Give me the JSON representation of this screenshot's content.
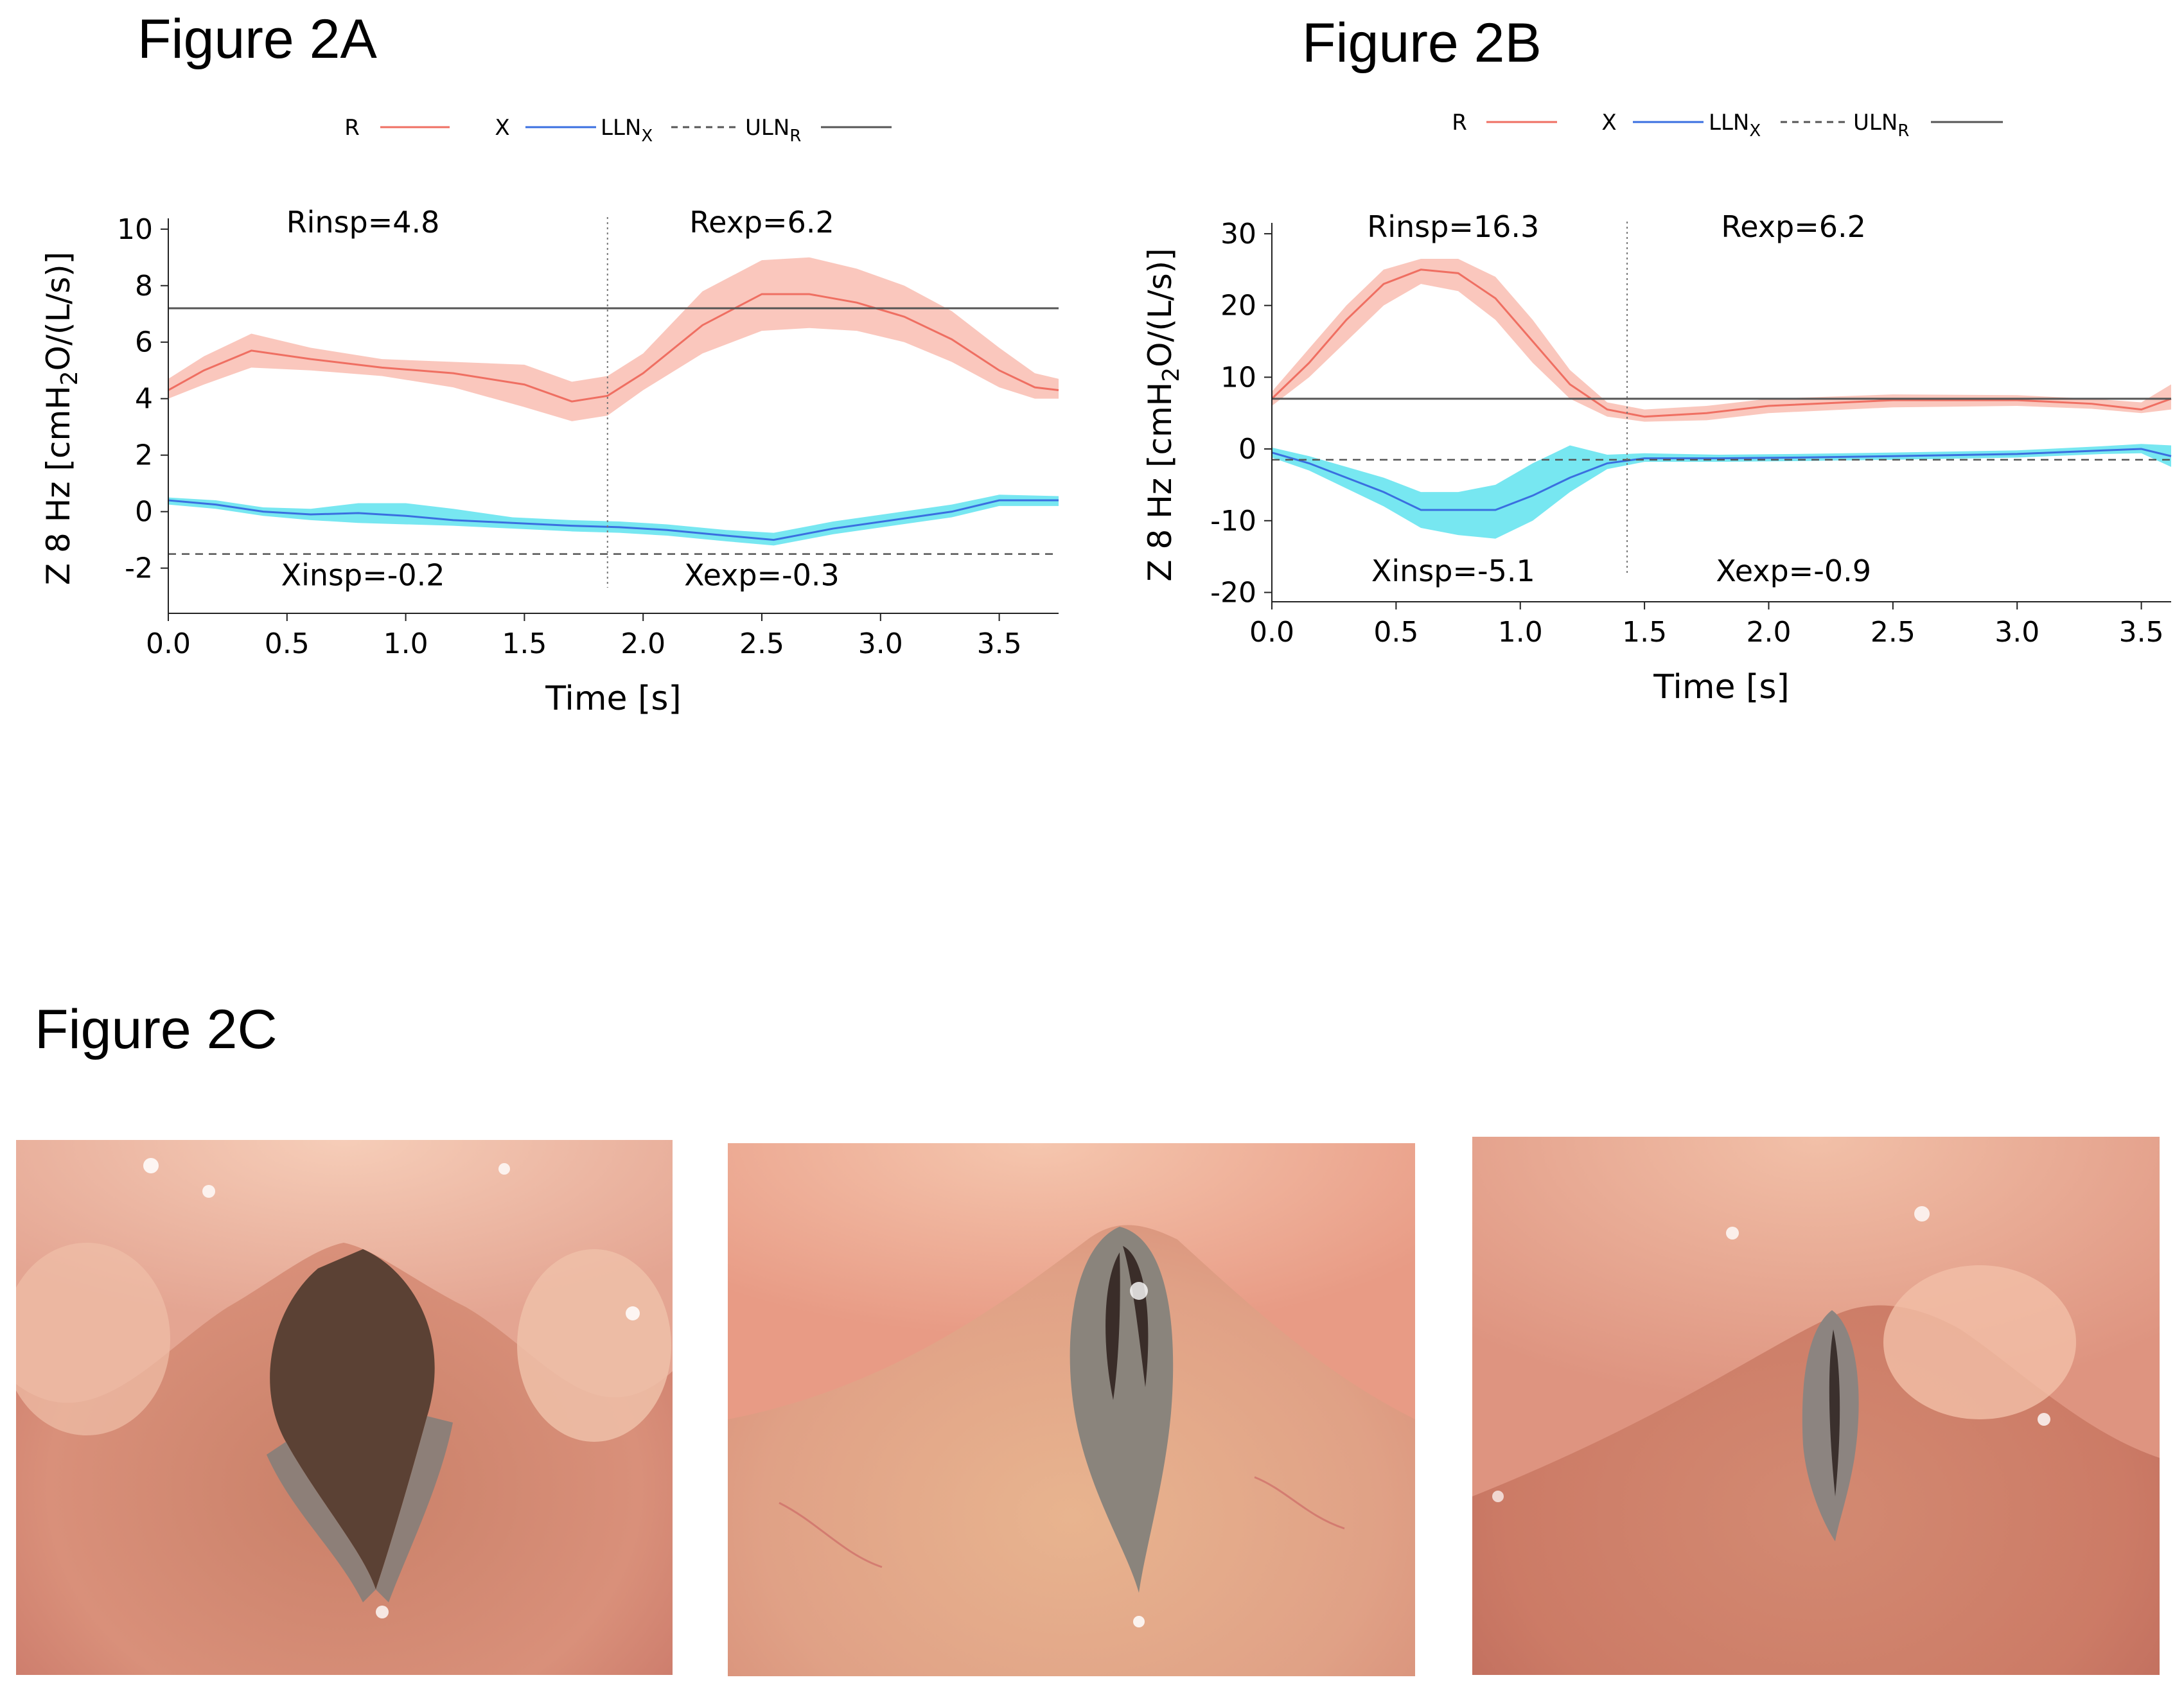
{
  "figures": {
    "a_title": "Figure 2A",
    "b_title": "Figure 2B",
    "c_title": "Figure 2C"
  },
  "colors": {
    "r_line": "#ef6f62",
    "r_band": "#f9b9ac",
    "x_line": "#3a6fe0",
    "x_band": "#5fe3ee",
    "uln": "#555555",
    "lln": "#555555"
  },
  "chart_data": [
    {
      "id": "fig2a",
      "type": "line",
      "legend": {
        "position": "top-center",
        "r": "R",
        "x": "X",
        "lln": "LLN",
        "lln_sub": "X",
        "uln": "ULN",
        "uln_sub": "R"
      },
      "ylabel_parts": [
        "Z 8 Hz [cmH",
        "2",
        "O/(L/s)]"
      ],
      "xlabel": "Time [s]",
      "xlim": [
        0,
        3.75
      ],
      "ylim": [
        -3.6,
        10.2
      ],
      "xticks": [
        0,
        0.5,
        1,
        1.5,
        2,
        2.5,
        3,
        3.5
      ],
      "xtick_labels": [
        "0.0",
        "0.5",
        "1.0",
        "1.5",
        "2.0",
        "2.5",
        "3.0",
        "3.5"
      ],
      "yticks": [
        -2,
        0,
        2,
        4,
        6,
        8,
        10
      ],
      "ytick_labels": [
        "-2",
        "0",
        "2",
        "4",
        "6",
        "8",
        "10"
      ],
      "divider_x": 1.85,
      "uln_r": 7.2,
      "lln_x": -1.5,
      "annotations": {
        "rinsp": {
          "text": "Rinsp=4.8",
          "x": 0.82,
          "y": 10.25
        },
        "rexp": {
          "text": "Rexp=6.2",
          "x": 2.5,
          "y": 10.25
        },
        "xinsp": {
          "text": "Xinsp=-0.2",
          "x": 0.82,
          "y": -2.25
        },
        "xexp": {
          "text": "Xexp=-0.3",
          "x": 2.5,
          "y": -2.25
        }
      },
      "series": [
        {
          "name": "R",
          "x": [
            0,
            0.15,
            0.35,
            0.6,
            0.9,
            1.2,
            1.5,
            1.7,
            1.85,
            2.0,
            2.25,
            2.5,
            2.7,
            2.9,
            3.1,
            3.3,
            3.5,
            3.65,
            3.75
          ],
          "y": [
            4.3,
            5.0,
            5.7,
            5.4,
            5.1,
            4.9,
            4.5,
            3.9,
            4.1,
            4.9,
            6.6,
            7.7,
            7.7,
            7.4,
            6.9,
            6.1,
            5.0,
            4.4,
            4.3
          ],
          "lo": [
            4.0,
            4.5,
            5.1,
            5.0,
            4.8,
            4.4,
            3.7,
            3.2,
            3.4,
            4.3,
            5.6,
            6.4,
            6.5,
            6.4,
            6.0,
            5.3,
            4.4,
            4.0,
            4.0
          ],
          "hi": [
            4.7,
            5.5,
            6.3,
            5.8,
            5.4,
            5.3,
            5.2,
            4.6,
            4.8,
            5.6,
            7.8,
            8.9,
            9.0,
            8.6,
            8.0,
            7.1,
            5.8,
            4.9,
            4.7
          ]
        },
        {
          "name": "X",
          "x": [
            0,
            0.2,
            0.4,
            0.6,
            0.8,
            1.0,
            1.2,
            1.45,
            1.7,
            1.9,
            2.1,
            2.35,
            2.55,
            2.8,
            3.05,
            3.3,
            3.5,
            3.75
          ],
          "y": [
            0.4,
            0.25,
            0.0,
            -0.1,
            -0.05,
            -0.15,
            -0.3,
            -0.4,
            -0.5,
            -0.55,
            -0.65,
            -0.85,
            -1.0,
            -0.6,
            -0.3,
            0.0,
            0.4,
            0.4
          ],
          "lo": [
            0.25,
            0.1,
            -0.15,
            -0.3,
            -0.4,
            -0.45,
            -0.5,
            -0.6,
            -0.7,
            -0.75,
            -0.85,
            -1.05,
            -1.2,
            -0.8,
            -0.5,
            -0.2,
            0.2,
            0.2
          ],
          "hi": [
            0.5,
            0.4,
            0.15,
            0.1,
            0.3,
            0.3,
            0.1,
            -0.2,
            -0.3,
            -0.35,
            -0.45,
            -0.65,
            -0.75,
            -0.35,
            -0.05,
            0.25,
            0.6,
            0.55
          ]
        }
      ]
    },
    {
      "id": "fig2b",
      "type": "line",
      "legend": {
        "position": "top-center",
        "r": "R",
        "x": "X",
        "lln": "LLN",
        "lln_sub": "X",
        "uln": "ULN",
        "uln_sub": "R"
      },
      "ylabel_parts": [
        "Z 8 Hz [cmH",
        "2",
        "O/(L/s)]"
      ],
      "xlabel": "Time [s]",
      "xlim": [
        0,
        3.62
      ],
      "ylim": [
        -21.3,
        30.8
      ],
      "xticks": [
        0,
        0.5,
        1,
        1.5,
        2,
        2.5,
        3,
        3.5
      ],
      "xtick_labels": [
        "0.0",
        "0.5",
        "1.0",
        "1.5",
        "2.0",
        "2.5",
        "3.0",
        "3.5"
      ],
      "yticks": [
        -20,
        -10,
        0,
        10,
        20,
        30
      ],
      "ytick_labels": [
        "-20",
        "-10",
        "0",
        "10",
        "20",
        "30"
      ],
      "divider_x": 1.43,
      "uln_r": 7.0,
      "lln_x": -1.5,
      "annotations": {
        "rinsp": {
          "text": "Rinsp=16.3",
          "x": 0.73,
          "y": 31.0
        },
        "rexp": {
          "text": "Rexp=6.2",
          "x": 2.1,
          "y": 31.0
        },
        "xinsp": {
          "text": "Xinsp=-5.1",
          "x": 0.73,
          "y": -17.0
        },
        "xexp": {
          "text": "Xexp=-0.9",
          "x": 2.1,
          "y": -17.0
        }
      },
      "series": [
        {
          "name": "R",
          "x": [
            0,
            0.15,
            0.3,
            0.45,
            0.6,
            0.75,
            0.9,
            1.05,
            1.2,
            1.35,
            1.5,
            1.75,
            2.0,
            2.5,
            3.0,
            3.3,
            3.5,
            3.62
          ],
          "y": [
            7,
            12,
            18,
            23,
            25,
            24.5,
            21,
            15,
            9,
            5.5,
            4.5,
            5,
            6,
            6.8,
            6.8,
            6.3,
            5.5,
            7
          ],
          "lo": [
            6,
            10,
            15,
            20,
            23,
            22,
            18,
            12,
            7,
            4.5,
            3.8,
            4,
            5,
            5.8,
            6,
            5.6,
            5,
            5.5
          ],
          "hi": [
            8,
            14,
            20,
            25,
            26.5,
            26.5,
            24,
            18,
            11,
            6.5,
            5.5,
            6,
            7,
            7.6,
            7.5,
            7,
            6.5,
            9
          ]
        },
        {
          "name": "X",
          "x": [
            0,
            0.15,
            0.3,
            0.45,
            0.6,
            0.75,
            0.9,
            1.05,
            1.2,
            1.35,
            1.5,
            1.8,
            2.1,
            2.5,
            3.0,
            3.35,
            3.5,
            3.62
          ],
          "y": [
            -0.5,
            -2,
            -4,
            -6,
            -8.5,
            -8.5,
            -8.5,
            -6.5,
            -4,
            -2,
            -1.3,
            -1.3,
            -1.2,
            -1,
            -0.7,
            -0.2,
            0,
            -1
          ],
          "lo": [
            -1.2,
            -3,
            -5.5,
            -8,
            -11,
            -12,
            -12.5,
            -10,
            -6,
            -2.8,
            -1.8,
            -1.8,
            -1.7,
            -1.5,
            -1.2,
            -0.7,
            -0.6,
            -2.5
          ],
          "hi": [
            0.2,
            -1,
            -2.5,
            -4,
            -6,
            -6,
            -5,
            -2,
            0.5,
            -0.8,
            -0.6,
            -0.8,
            -0.7,
            -0.5,
            -0.2,
            0.4,
            0.7,
            0.5
          ]
        }
      ]
    }
  ]
}
